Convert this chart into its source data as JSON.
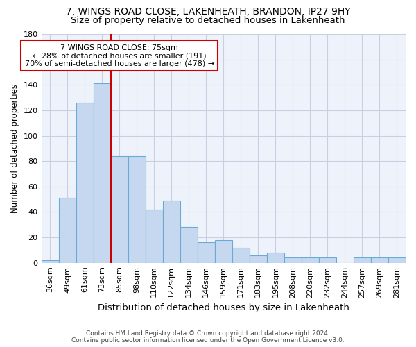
{
  "title_line1": "7, WINGS ROAD CLOSE, LAKENHEATH, BRANDON, IP27 9HY",
  "title_line2": "Size of property relative to detached houses in Lakenheath",
  "xlabel": "Distribution of detached houses by size in Lakenheath",
  "ylabel": "Number of detached properties",
  "categories": [
    "36sqm",
    "49sqm",
    "61sqm",
    "73sqm",
    "85sqm",
    "98sqm",
    "110sqm",
    "122sqm",
    "134sqm",
    "146sqm",
    "159sqm",
    "171sqm",
    "183sqm",
    "195sqm",
    "208sqm",
    "220sqm",
    "232sqm",
    "244sqm",
    "257sqm",
    "269sqm",
    "281sqm"
  ],
  "values": [
    2,
    51,
    126,
    141,
    84,
    84,
    42,
    49,
    28,
    16,
    18,
    12,
    6,
    8,
    4,
    4,
    4,
    0,
    4,
    4,
    4
  ],
  "bar_color": "#c5d8f0",
  "bar_edge_color": "#6aaad4",
  "vline_color": "#cc0000",
  "annotation_text": "7 WINGS ROAD CLOSE: 75sqm\n← 28% of detached houses are smaller (191)\n70% of semi-detached houses are larger (478) →",
  "annotation_box_color": "#ffffff",
  "annotation_box_edge": "#cc0000",
  "ylim": [
    0,
    180
  ],
  "yticks": [
    0,
    20,
    40,
    60,
    80,
    100,
    120,
    140,
    160,
    180
  ],
  "grid_color": "#c8cfe0",
  "background_color": "#eef2fb",
  "footer_line1": "Contains HM Land Registry data © Crown copyright and database right 2024.",
  "footer_line2": "Contains public sector information licensed under the Open Government Licence v3.0.",
  "title_fontsize": 10,
  "subtitle_fontsize": 9.5,
  "xlabel_fontsize": 9.5,
  "ylabel_fontsize": 8.5,
  "tick_fontsize": 8,
  "annotation_fontsize": 8,
  "footer_fontsize": 6.5
}
